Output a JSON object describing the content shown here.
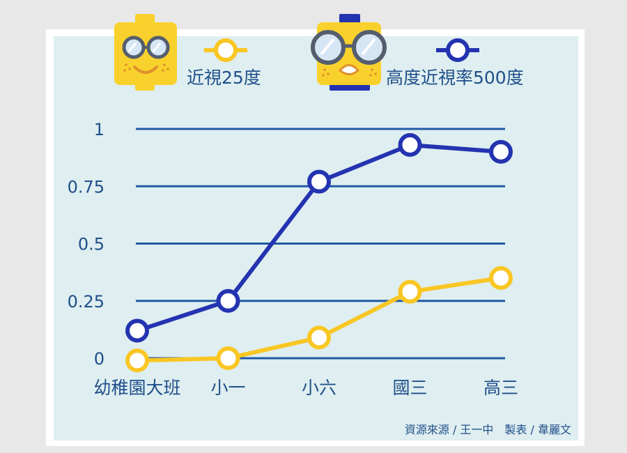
{
  "chart_data": {
    "type": "line",
    "categories": [
      "幼稚園大班",
      "小一",
      "小六",
      "國三",
      "高三"
    ],
    "series": [
      {
        "name": "近視25度",
        "values": [
          -0.01,
          0.0,
          0.09,
          0.29,
          0.35
        ],
        "color": "#f9c623"
      },
      {
        "name": "高度近視率500度",
        "values": [
          0.12,
          0.25,
          0.77,
          0.93,
          0.9
        ],
        "color": "#2433b0"
      }
    ],
    "y_ticks": [
      "1",
      "0.75",
      "0.5",
      "0.25",
      "0"
    ],
    "ylim": [
      0,
      1
    ],
    "grid": true,
    "legend_position": "top"
  },
  "colors": {
    "page_background": "#e8e8e8",
    "panel_border": "#ffffff",
    "panel_fill": "#dfeef0",
    "gridline": "#1f5aa6",
    "text": "#1f4f8a",
    "icon_yellow": "#f9d12c",
    "icon_blue": "#2433b0"
  },
  "legend": {
    "mild": "近視25度",
    "high": "高度近視率500度"
  },
  "icons": {
    "mild": "smiling-face-with-glasses-icon",
    "high": "surprised-face-with-big-glasses-icon"
  },
  "credit": "資源來源 / 王一中　製表 / 韋麗文"
}
